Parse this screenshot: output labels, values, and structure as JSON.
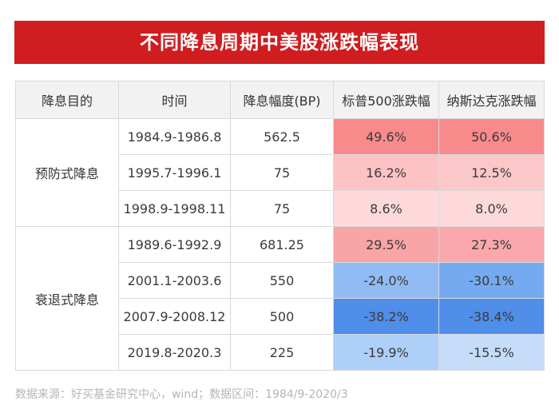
{
  "title": "不同降息周期中美股涨跌幅表现",
  "table": {
    "headers": [
      "降息目的",
      "时间",
      "降息幅度(BP)",
      "标普500涨跌幅",
      "纳斯达克涨跌幅"
    ],
    "groups": [
      {
        "label": "预防式降息",
        "rows": [
          {
            "period": "1984.9-1986.8",
            "cut_bp": "562.5",
            "sp500": "49.6%",
            "nasdaq": "50.6%",
            "sp500_color": "#f88a8c",
            "nasdaq_color": "#f88a8c"
          },
          {
            "period": "1995.7-1996.1",
            "cut_bp": "75",
            "sp500": "16.2%",
            "nasdaq": "12.5%",
            "sp500_color": "#fcc2c4",
            "nasdaq_color": "#fcc7c9"
          },
          {
            "period": "1998.9-1998.11",
            "cut_bp": "75",
            "sp500": "8.6%",
            "nasdaq": "8.0%",
            "sp500_color": "#fdd9db",
            "nasdaq_color": "#fdd9db"
          }
        ]
      },
      {
        "label": "衰退式降息",
        "rows": [
          {
            "period": "1989.6-1992.9",
            "cut_bp": "681.25",
            "sp500": "29.5%",
            "nasdaq": "27.3%",
            "sp500_color": "#f9a4a7",
            "nasdaq_color": "#faa8ab"
          },
          {
            "period": "2001.1-2003.6",
            "cut_bp": "550",
            "sp500": "-24.0%",
            "nasdaq": "-30.1%",
            "sp500_color": "#90bcf3",
            "nasdaq_color": "#75aaf0"
          },
          {
            "period": "2007.9-2008.12",
            "cut_bp": "500",
            "sp500": "-38.2%",
            "nasdaq": "-38.4%",
            "sp500_color": "#4f8ee9",
            "nasdaq_color": "#4f8ee9"
          },
          {
            "period": "2019.8-2020.3",
            "cut_bp": "225",
            "sp500": "-19.9%",
            "nasdaq": "-15.5%",
            "sp500_color": "#aecff7",
            "nasdaq_color": "#c5ddf9"
          }
        ]
      }
    ]
  },
  "source": "数据来源：好买基金研究中心，wind；数据区间：1984/9-2020/3"
}
